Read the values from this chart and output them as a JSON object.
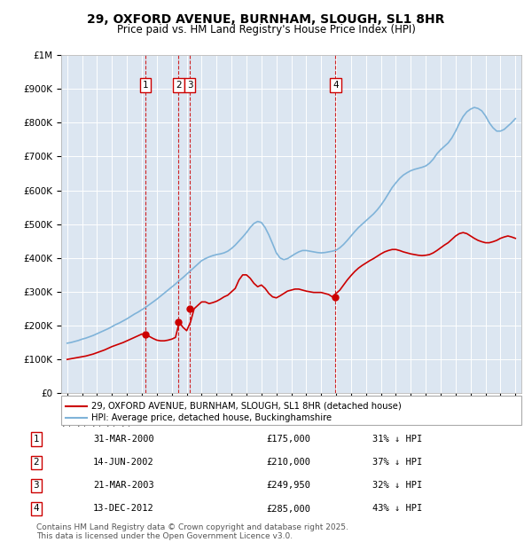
{
  "title_line1": "29, OXFORD AVENUE, BURNHAM, SLOUGH, SL1 8HR",
  "title_line2": "Price paid vs. HM Land Registry's House Price Index (HPI)",
  "ylim": [
    0,
    1000000
  ],
  "xlim": [
    1994.6,
    2025.4
  ],
  "ytick_vals": [
    0,
    100000,
    200000,
    300000,
    400000,
    500000,
    600000,
    700000,
    800000,
    900000,
    1000000
  ],
  "ytick_labels": [
    "£0",
    "£100K",
    "£200K",
    "£300K",
    "£400K",
    "£500K",
    "£600K",
    "£700K",
    "£800K",
    "£900K",
    "£1M"
  ],
  "plot_bg_color": "#dce6f1",
  "transactions": [
    {
      "num": 1,
      "year": 2000.25,
      "price": 175000,
      "label": "31-MAR-2000",
      "pct": "31%",
      "dir": "↓"
    },
    {
      "num": 2,
      "year": 2002.45,
      "price": 210000,
      "label": "14-JUN-2002",
      "pct": "37%",
      "dir": "↓"
    },
    {
      "num": 3,
      "year": 2003.22,
      "price": 249950,
      "label": "21-MAR-2003",
      "pct": "32%",
      "dir": "↓"
    },
    {
      "num": 4,
      "year": 2012.96,
      "price": 285000,
      "label": "13-DEC-2012",
      "pct": "43%",
      "dir": "↓"
    }
  ],
  "red_line_color": "#cc0000",
  "blue_line_color": "#7fb3d9",
  "transaction_box_color": "#cc0000",
  "dashed_line_color": "#cc0000",
  "legend_label_red": "29, OXFORD AVENUE, BURNHAM, SLOUGH, SL1 8HR (detached house)",
  "legend_label_blue": "HPI: Average price, detached house, Buckinghamshire",
  "footer_text": "Contains HM Land Registry data © Crown copyright and database right 2025.\nThis data is licensed under the Open Government Licence v3.0.",
  "hpi_x": [
    1995,
    1995.25,
    1995.5,
    1995.75,
    1996,
    1996.25,
    1996.5,
    1996.75,
    1997,
    1997.25,
    1997.5,
    1997.75,
    1998,
    1998.25,
    1998.5,
    1998.75,
    1999,
    1999.25,
    1999.5,
    1999.75,
    2000,
    2000.25,
    2000.5,
    2000.75,
    2001,
    2001.25,
    2001.5,
    2001.75,
    2002,
    2002.25,
    2002.5,
    2002.75,
    2003,
    2003.25,
    2003.5,
    2003.75,
    2004,
    2004.25,
    2004.5,
    2004.75,
    2005,
    2005.25,
    2005.5,
    2005.75,
    2006,
    2006.25,
    2006.5,
    2006.75,
    2007,
    2007.25,
    2007.5,
    2007.75,
    2008,
    2008.25,
    2008.5,
    2008.75,
    2009,
    2009.25,
    2009.5,
    2009.75,
    2010,
    2010.25,
    2010.5,
    2010.75,
    2011,
    2011.25,
    2011.5,
    2011.75,
    2012,
    2012.25,
    2012.5,
    2012.75,
    2013,
    2013.25,
    2013.5,
    2013.75,
    2014,
    2014.25,
    2014.5,
    2014.75,
    2015,
    2015.25,
    2015.5,
    2015.75,
    2016,
    2016.25,
    2016.5,
    2016.75,
    2017,
    2017.25,
    2017.5,
    2017.75,
    2018,
    2018.25,
    2018.5,
    2018.75,
    2019,
    2019.25,
    2019.5,
    2019.75,
    2020,
    2020.25,
    2020.5,
    2020.75,
    2021,
    2021.25,
    2021.5,
    2021.75,
    2022,
    2022.25,
    2022.5,
    2022.75,
    2023,
    2023.25,
    2023.5,
    2023.75,
    2024,
    2024.25,
    2024.5,
    2024.75,
    2025
  ],
  "hpi_y": [
    148000,
    150000,
    153000,
    156000,
    160000,
    163000,
    167000,
    171000,
    176000,
    181000,
    186000,
    191000,
    197000,
    203000,
    208000,
    214000,
    220000,
    227000,
    234000,
    240000,
    247000,
    254000,
    262000,
    270000,
    278000,
    287000,
    296000,
    305000,
    314000,
    323000,
    333000,
    342000,
    352000,
    362000,
    372000,
    382000,
    392000,
    398000,
    403000,
    407000,
    410000,
    412000,
    415000,
    420000,
    428000,
    438000,
    450000,
    462000,
    475000,
    490000,
    502000,
    508000,
    505000,
    490000,
    468000,
    442000,
    415000,
    400000,
    395000,
    398000,
    405000,
    412000,
    418000,
    422000,
    422000,
    420000,
    418000,
    416000,
    415000,
    416000,
    418000,
    420000,
    423000,
    430000,
    440000,
    452000,
    465000,
    478000,
    490000,
    500000,
    510000,
    520000,
    530000,
    542000,
    556000,
    572000,
    590000,
    608000,
    622000,
    635000,
    645000,
    652000,
    658000,
    662000,
    665000,
    668000,
    672000,
    680000,
    692000,
    708000,
    720000,
    730000,
    740000,
    755000,
    775000,
    798000,
    818000,
    832000,
    840000,
    845000,
    842000,
    835000,
    820000,
    800000,
    785000,
    775000,
    775000,
    780000,
    790000,
    800000,
    812000
  ],
  "red_x": [
    1995,
    1995.25,
    1995.5,
    1995.75,
    1996,
    1996.25,
    1996.5,
    1996.75,
    1997,
    1997.25,
    1997.5,
    1997.75,
    1998,
    1998.25,
    1998.5,
    1998.75,
    1999,
    1999.25,
    1999.5,
    1999.75,
    2000,
    2000.25,
    2000.5,
    2000.75,
    2001,
    2001.25,
    2001.5,
    2001.75,
    2002,
    2002.25,
    2002.5,
    2002.75,
    2003,
    2003.25,
    2003.5,
    2003.75,
    2004,
    2004.25,
    2004.5,
    2004.75,
    2005,
    2005.25,
    2005.5,
    2005.75,
    2006,
    2006.25,
    2006.5,
    2006.75,
    2007,
    2007.25,
    2007.5,
    2007.75,
    2008,
    2008.25,
    2008.5,
    2008.75,
    2009,
    2009.25,
    2009.5,
    2009.75,
    2010,
    2010.25,
    2010.5,
    2010.75,
    2011,
    2011.25,
    2011.5,
    2011.75,
    2012,
    2012.25,
    2012.5,
    2012.75,
    2013,
    2013.25,
    2013.5,
    2013.75,
    2014,
    2014.25,
    2014.5,
    2014.75,
    2015,
    2015.25,
    2015.5,
    2015.75,
    2016,
    2016.25,
    2016.5,
    2016.75,
    2017,
    2017.25,
    2017.5,
    2017.75,
    2018,
    2018.25,
    2018.5,
    2018.75,
    2019,
    2019.25,
    2019.5,
    2019.75,
    2020,
    2020.25,
    2020.5,
    2020.75,
    2021,
    2021.25,
    2021.5,
    2021.75,
    2022,
    2022.25,
    2022.5,
    2022.75,
    2023,
    2023.25,
    2023.5,
    2023.75,
    2024,
    2024.25,
    2024.5,
    2024.75,
    2025
  ],
  "red_y": [
    100000,
    102000,
    104000,
    106000,
    108000,
    110000,
    113000,
    116000,
    120000,
    124000,
    128000,
    133000,
    138000,
    142000,
    146000,
    150000,
    155000,
    160000,
    165000,
    170000,
    175000,
    175000,
    168000,
    162000,
    157000,
    155000,
    155000,
    157000,
    160000,
    165000,
    210000,
    195000,
    185000,
    210000,
    249950,
    260000,
    270000,
    270000,
    265000,
    268000,
    272000,
    278000,
    285000,
    290000,
    300000,
    310000,
    335000,
    350000,
    350000,
    340000,
    325000,
    315000,
    320000,
    310000,
    295000,
    285000,
    282000,
    288000,
    295000,
    302000,
    305000,
    308000,
    308000,
    305000,
    302000,
    300000,
    298000,
    298000,
    298000,
    295000,
    292000,
    285000,
    295000,
    305000,
    320000,
    335000,
    348000,
    360000,
    370000,
    378000,
    385000,
    392000,
    398000,
    405000,
    412000,
    418000,
    422000,
    425000,
    425000,
    422000,
    418000,
    415000,
    412000,
    410000,
    408000,
    407000,
    408000,
    410000,
    415000,
    422000,
    430000,
    438000,
    445000,
    455000,
    465000,
    472000,
    475000,
    472000,
    465000,
    458000,
    452000,
    448000,
    445000,
    445000,
    448000,
    452000,
    458000,
    462000,
    465000,
    462000,
    458000
  ]
}
